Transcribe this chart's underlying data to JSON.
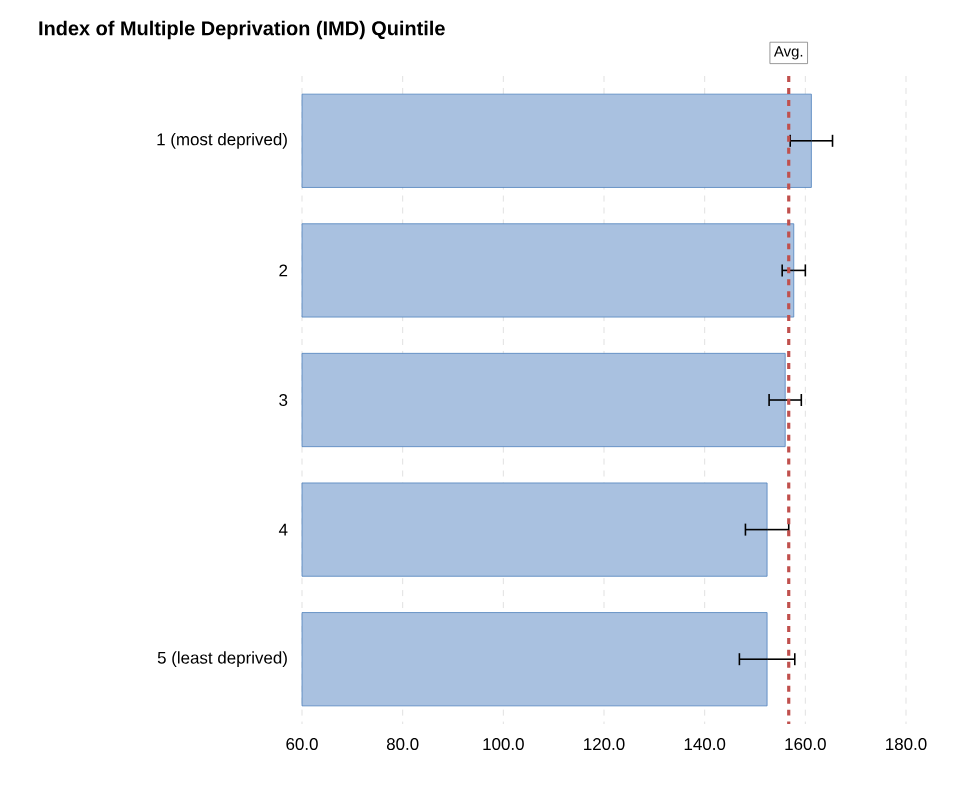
{
  "chart_data": {
    "type": "bar",
    "orientation": "horizontal",
    "title": "Index of Multiple Deprivation (IMD) Quintile",
    "categories": [
      "1 (most deprived)",
      "2",
      "3",
      "4",
      "5 (least deprived)"
    ],
    "values": [
      161.2,
      157.7,
      156.0,
      152.4,
      152.4
    ],
    "errors": [
      4.2,
      2.3,
      3.2,
      4.3,
      5.5
    ],
    "color": "#a9c1e0",
    "xlim": [
      60,
      180
    ],
    "xticks": [
      {
        "value": 60,
        "label": "60.0"
      },
      {
        "value": 80,
        "label": "80.0"
      },
      {
        "value": 100,
        "label": "100.0"
      },
      {
        "value": 120,
        "label": "120.0"
      },
      {
        "value": 140,
        "label": "140.0"
      },
      {
        "value": 160,
        "label": "160.0"
      },
      {
        "value": 180,
        "label": "180.0"
      }
    ],
    "ref_lines": [
      {
        "axis": "x",
        "value": 156.7,
        "label": "Avg.",
        "color": "#c0504d",
        "line_style": "dashed"
      }
    ],
    "grid": "x"
  }
}
